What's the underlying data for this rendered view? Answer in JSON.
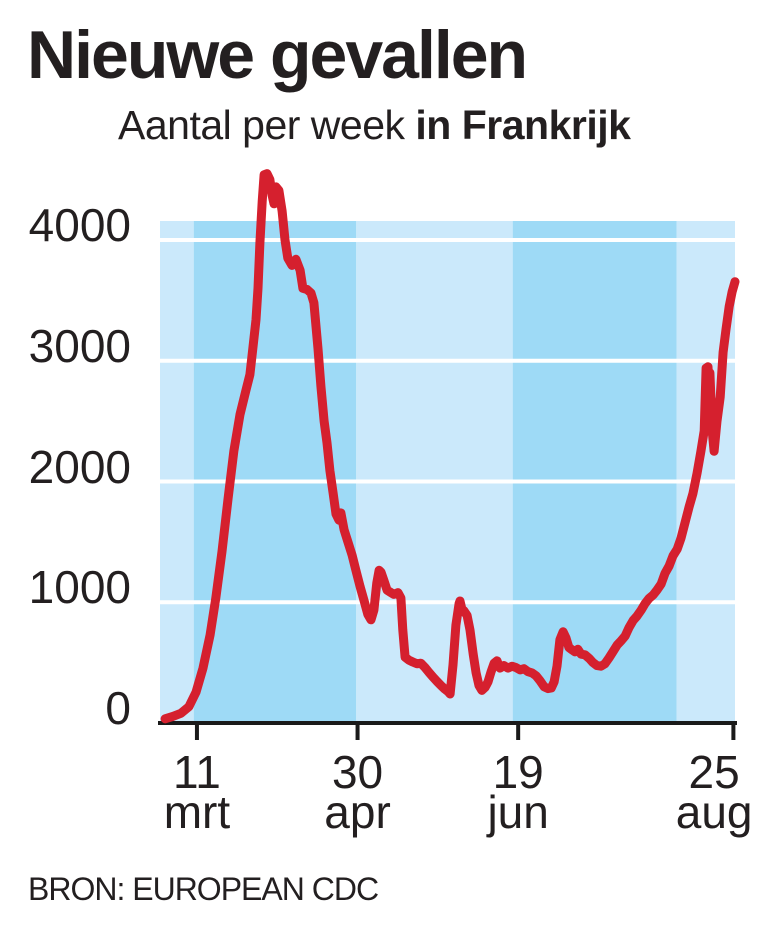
{
  "chart_data": {
    "type": "line",
    "title": "Nieuwe gevallen",
    "subtitle_regular": "Aantal per week ",
    "subtitle_bold": "in Frankrijk",
    "source": "BRON: EUROPEAN CDC",
    "x_unit": "days since 28 feb 2020",
    "xlabel": "",
    "ylabel": "",
    "ylim": [
      0,
      4160
    ],
    "yticks": [
      0,
      1000,
      2000,
      3000,
      4000
    ],
    "xticks": [
      {
        "d": 12,
        "lines": [
          "11",
          "mrt"
        ]
      },
      {
        "d": 62,
        "lines": [
          "30",
          "apr"
        ]
      },
      {
        "d": 112,
        "lines": [
          "19",
          "jun"
        ]
      },
      {
        "d": 179,
        "lines": [
          "25",
          "aug"
        ],
        "label_d": 173
      }
    ],
    "bands": [
      {
        "from": 0.5,
        "to": 11.0,
        "tone": "light"
      },
      {
        "from": 11.0,
        "to": 61.6,
        "tone": "dark"
      },
      {
        "from": 61.6,
        "to": 110.3,
        "tone": "light"
      },
      {
        "from": 110.3,
        "to": 161.3,
        "tone": "dark"
      },
      {
        "from": 161.3,
        "to": 179.5,
        "tone": "light"
      }
    ],
    "colors": {
      "line": "#d5202e",
      "band_light": "#cbe9fb",
      "band_dark": "#9edaf6",
      "gridline": "#ffffff",
      "axis": "#1a1a1a",
      "text": "#231f20"
    },
    "series_name": "Nieuwe gevallen per week, Frankrijk",
    "points": [
      [
        2.1,
        35
      ],
      [
        4.5,
        55
      ],
      [
        7,
        80
      ],
      [
        9.5,
        135
      ],
      [
        11.7,
        255
      ],
      [
        13.9,
        455
      ],
      [
        16.1,
        730
      ],
      [
        17.9,
        1040
      ],
      [
        19.8,
        1420
      ],
      [
        21.7,
        1860
      ],
      [
        23.5,
        2255
      ],
      [
        25.4,
        2555
      ],
      [
        27.3,
        2760
      ],
      [
        28.5,
        2885
      ],
      [
        29.4,
        3100
      ],
      [
        30.4,
        3340
      ],
      [
        31,
        3600
      ],
      [
        31.6,
        3975
      ],
      [
        32.3,
        4320
      ],
      [
        32.9,
        4540
      ],
      [
        33.8,
        4550
      ],
      [
        34.7,
        4500
      ],
      [
        35.4,
        4370
      ],
      [
        36,
        4300
      ],
      [
        36.6,
        4440
      ],
      [
        37.5,
        4410
      ],
      [
        38.5,
        4240
      ],
      [
        39.4,
        4000
      ],
      [
        40.3,
        3850
      ],
      [
        41.6,
        3790
      ],
      [
        42.8,
        3840
      ],
      [
        44.1,
        3750
      ],
      [
        45,
        3600
      ],
      [
        46.3,
        3590
      ],
      [
        47.5,
        3560
      ],
      [
        48.4,
        3480
      ],
      [
        49.7,
        3100
      ],
      [
        50.6,
        2790
      ],
      [
        51.6,
        2500
      ],
      [
        52.5,
        2320
      ],
      [
        53.4,
        2090
      ],
      [
        54.4,
        1905
      ],
      [
        55.3,
        1730
      ],
      [
        56.2,
        1680
      ],
      [
        56.8,
        1740
      ],
      [
        57.8,
        1600
      ],
      [
        59,
        1500
      ],
      [
        60.3,
        1390
      ],
      [
        61.5,
        1265
      ],
      [
        62.8,
        1130
      ],
      [
        64,
        1015
      ],
      [
        65.2,
        900
      ],
      [
        66.2,
        855
      ],
      [
        67.1,
        935
      ],
      [
        68,
        1160
      ],
      [
        68.7,
        1265
      ],
      [
        69.3,
        1250
      ],
      [
        70.2,
        1180
      ],
      [
        71.2,
        1100
      ],
      [
        72.1,
        1085
      ],
      [
        73.3,
        1065
      ],
      [
        74.6,
        1080
      ],
      [
        75.5,
        1035
      ],
      [
        76.1,
        770
      ],
      [
        76.8,
        545
      ],
      [
        78,
        520
      ],
      [
        79.2,
        505
      ],
      [
        80.5,
        490
      ],
      [
        81.7,
        495
      ],
      [
        83,
        460
      ],
      [
        84.2,
        420
      ],
      [
        85.5,
        380
      ],
      [
        86.7,
        345
      ],
      [
        88,
        310
      ],
      [
        89.2,
        280
      ],
      [
        90.2,
        260
      ],
      [
        90.8,
        240
      ],
      [
        91.7,
        480
      ],
      [
        92.6,
        810
      ],
      [
        93.6,
        990
      ],
      [
        93.9,
        1010
      ],
      [
        94.5,
        940
      ],
      [
        95.1,
        930
      ],
      [
        96.1,
        890
      ],
      [
        97,
        770
      ],
      [
        98,
        570
      ],
      [
        98.9,
        415
      ],
      [
        99.8,
        310
      ],
      [
        100.7,
        270
      ],
      [
        101.7,
        295
      ],
      [
        102.6,
        340
      ],
      [
        103.5,
        420
      ],
      [
        104.5,
        495
      ],
      [
        105.4,
        515
      ],
      [
        106.3,
        455
      ],
      [
        107.6,
        475
      ],
      [
        108.8,
        455
      ],
      [
        110.1,
        470
      ],
      [
        111.3,
        460
      ],
      [
        112.6,
        440
      ],
      [
        113.8,
        450
      ],
      [
        115.1,
        425
      ],
      [
        116.3,
        415
      ],
      [
        117.6,
        390
      ],
      [
        118.8,
        350
      ],
      [
        120.1,
        300
      ],
      [
        121.3,
        285
      ],
      [
        122.3,
        290
      ],
      [
        123.2,
        340
      ],
      [
        124.1,
        470
      ],
      [
        125,
        690
      ],
      [
        126,
        755
      ],
      [
        126.9,
        705
      ],
      [
        127.8,
        625
      ],
      [
        128.8,
        605
      ],
      [
        129.7,
        590
      ],
      [
        130.6,
        610
      ],
      [
        131.6,
        570
      ],
      [
        132.8,
        565
      ],
      [
        134.1,
        535
      ],
      [
        135.3,
        500
      ],
      [
        136.5,
        475
      ],
      [
        137.8,
        470
      ],
      [
        139,
        490
      ],
      [
        140.3,
        540
      ],
      [
        141.5,
        590
      ],
      [
        142.8,
        645
      ],
      [
        144,
        680
      ],
      [
        145.3,
        720
      ],
      [
        146.5,
        790
      ],
      [
        147.8,
        850
      ],
      [
        149,
        885
      ],
      [
        150.3,
        935
      ],
      [
        151.5,
        990
      ],
      [
        152.7,
        1030
      ],
      [
        154,
        1060
      ],
      [
        155.2,
        1100
      ],
      [
        156.5,
        1150
      ],
      [
        157.7,
        1240
      ],
      [
        159,
        1300
      ],
      [
        160.2,
        1385
      ],
      [
        161.5,
        1440
      ],
      [
        162.7,
        1530
      ],
      [
        164,
        1665
      ],
      [
        165.2,
        1790
      ],
      [
        166.4,
        1900
      ],
      [
        167.7,
        2070
      ],
      [
        168.9,
        2250
      ],
      [
        169.9,
        2420
      ],
      [
        170.5,
        2940
      ],
      [
        171.1,
        2950
      ],
      [
        171.4,
        2790
      ],
      [
        171.7,
        2900
      ],
      [
        172.4,
        2420
      ],
      [
        173,
        2250
      ],
      [
        173.9,
        2500
      ],
      [
        174.9,
        2700
      ],
      [
        175.8,
        3070
      ],
      [
        176.7,
        3260
      ],
      [
        177.7,
        3450
      ],
      [
        178.6,
        3570
      ],
      [
        179.5,
        3655
      ]
    ]
  }
}
